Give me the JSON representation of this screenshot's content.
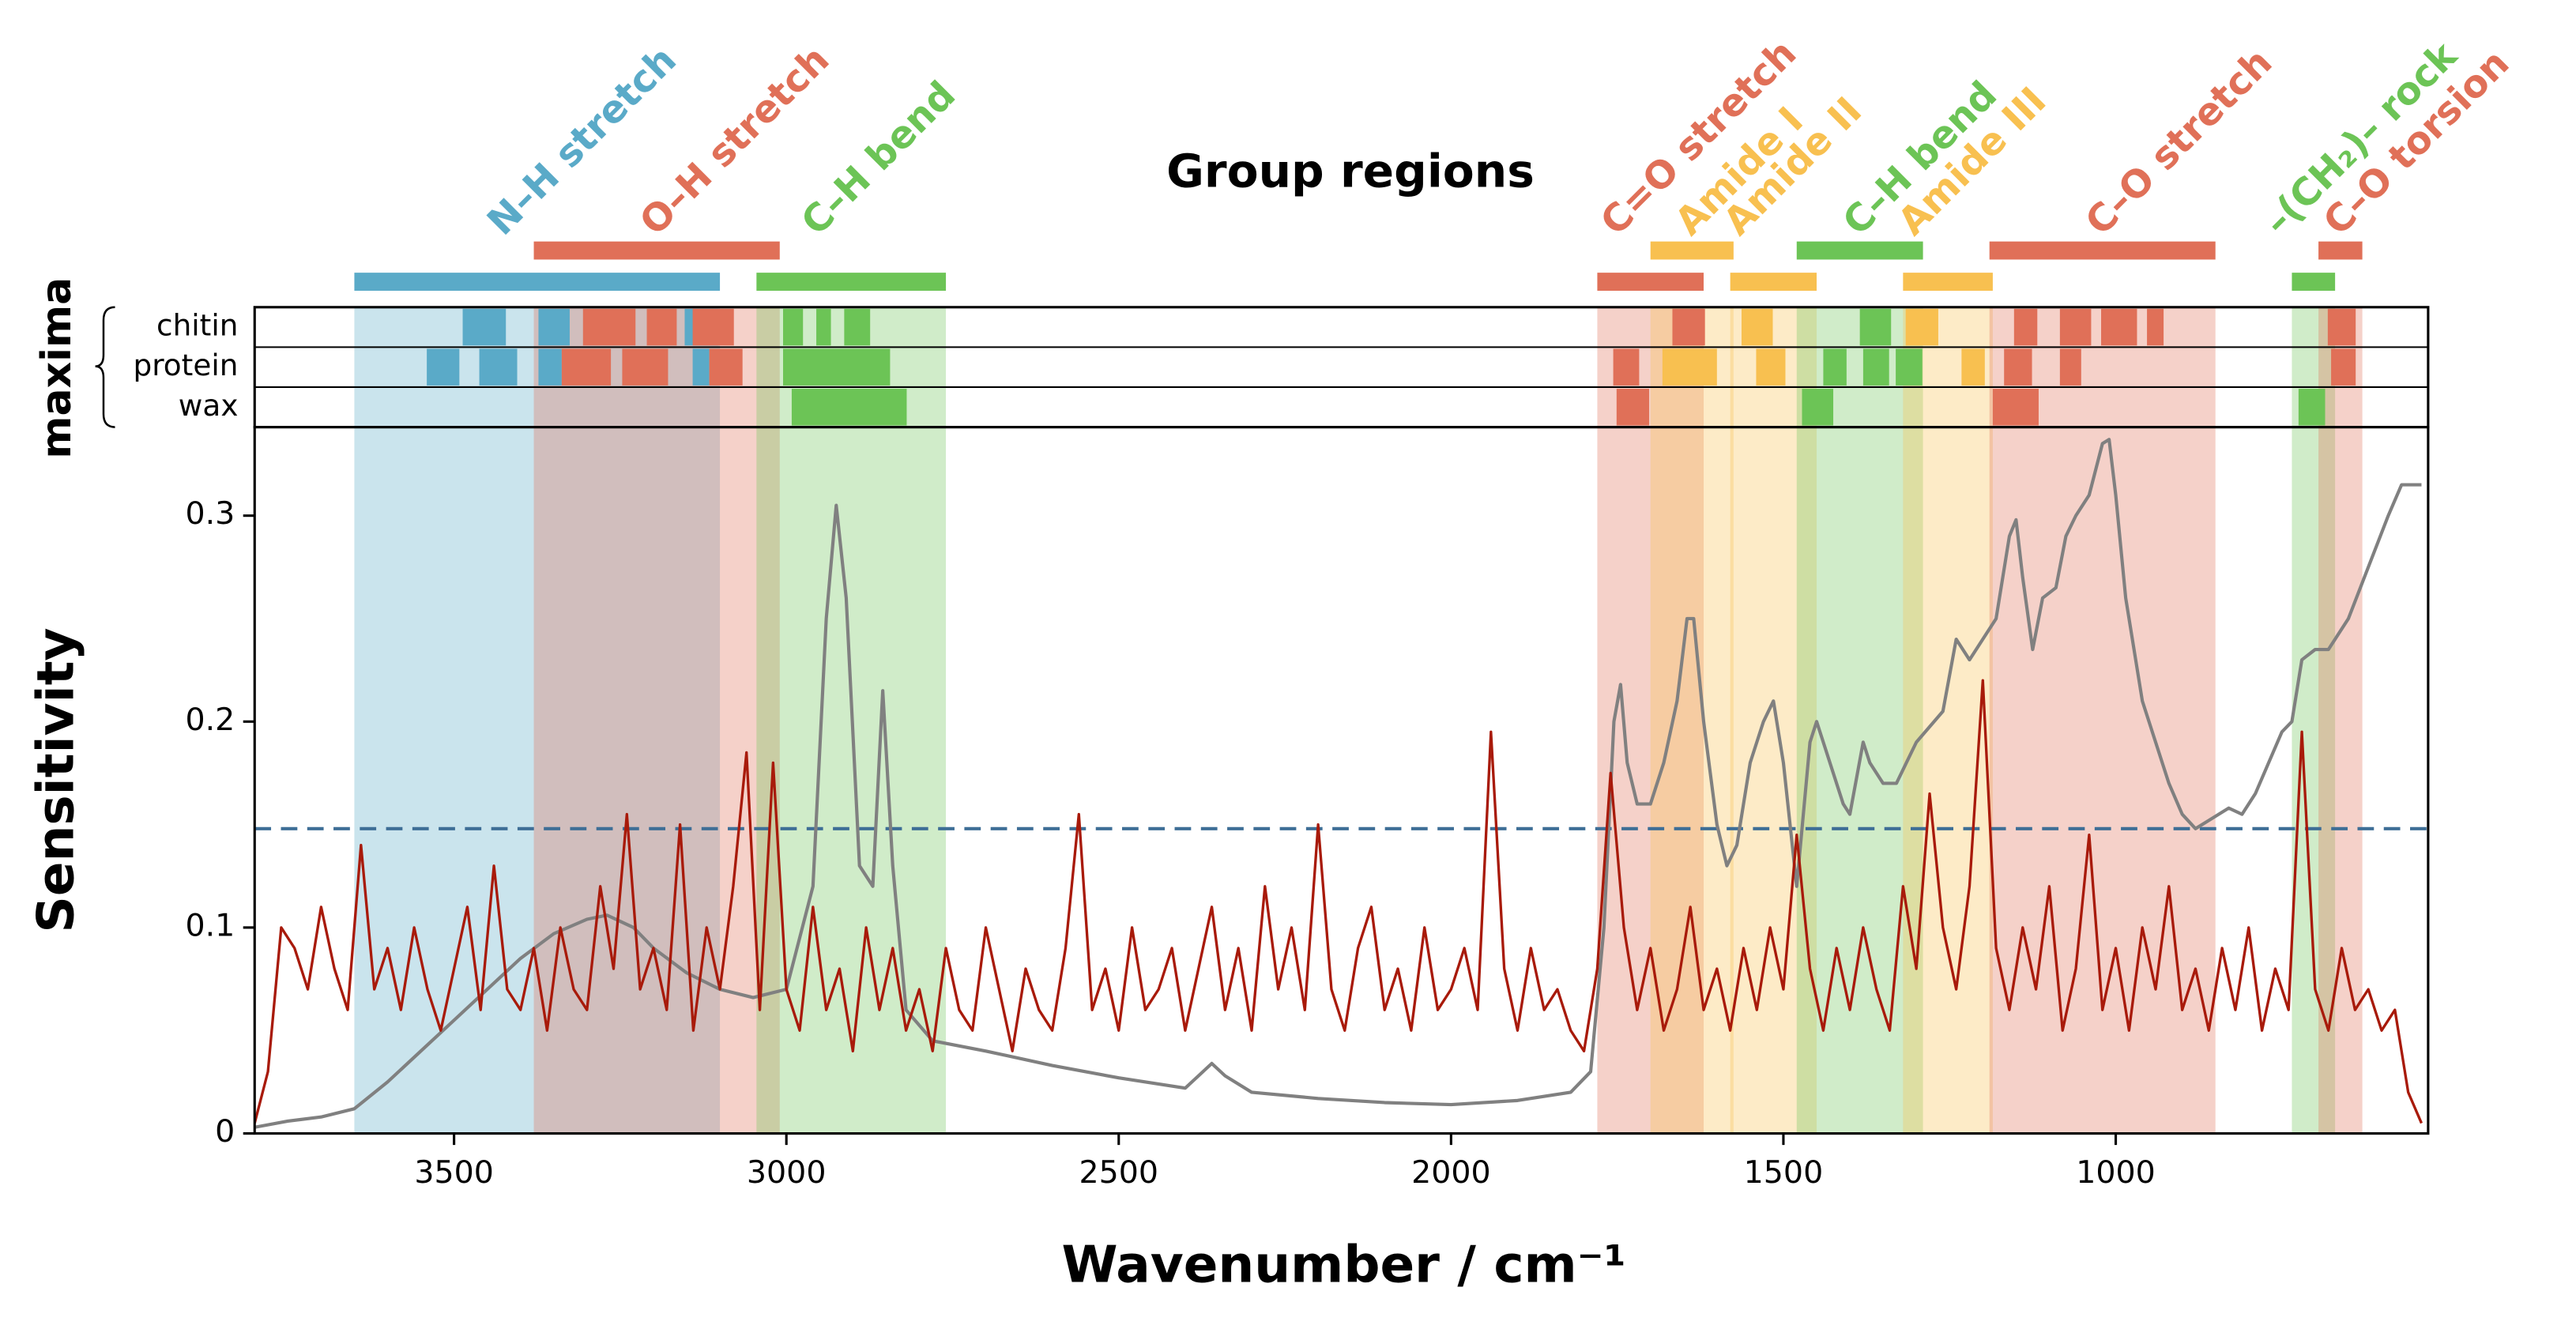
{
  "chart_data": {
    "type": "line",
    "title": "Group regions",
    "xlabel": "Wavenumber / cm⁻¹",
    "ylabel": "Sensitivity",
    "xlim": [
      3800,
      530
    ],
    "xticks": [
      3500,
      3000,
      2500,
      2000,
      1500,
      1000
    ],
    "ylim": [
      0,
      0.343
    ],
    "yticks": [
      0,
      0.1,
      0.2,
      0.3
    ],
    "threshold": {
      "value": 0.148,
      "color": "#3e6e96"
    },
    "series": [
      {
        "color": "#a81a0a",
        "x": [
          3800,
          3780,
          3760,
          3740,
          3720,
          3700,
          3680,
          3660,
          3640,
          3620,
          3600,
          3580,
          3560,
          3540,
          3520,
          3500,
          3480,
          3460,
          3440,
          3420,
          3400,
          3380,
          3360,
          3340,
          3320,
          3300,
          3280,
          3260,
          3240,
          3220,
          3200,
          3180,
          3160,
          3140,
          3120,
          3100,
          3080,
          3060,
          3040,
          3020,
          3000,
          2980,
          2960,
          2940,
          2920,
          2900,
          2880,
          2860,
          2840,
          2820,
          2800,
          2780,
          2760,
          2740,
          2720,
          2700,
          2680,
          2660,
          2640,
          2620,
          2600,
          2580,
          2560,
          2540,
          2520,
          2500,
          2480,
          2460,
          2440,
          2420,
          2400,
          2380,
          2360,
          2340,
          2320,
          2300,
          2280,
          2260,
          2240,
          2220,
          2200,
          2180,
          2160,
          2140,
          2120,
          2100,
          2080,
          2060,
          2040,
          2020,
          2000,
          1980,
          1960,
          1940,
          1920,
          1900,
          1880,
          1860,
          1840,
          1820,
          1800,
          1780,
          1760,
          1740,
          1720,
          1700,
          1680,
          1660,
          1640,
          1620,
          1600,
          1580,
          1560,
          1540,
          1520,
          1500,
          1480,
          1460,
          1440,
          1420,
          1400,
          1380,
          1360,
          1340,
          1320,
          1300,
          1280,
          1260,
          1240,
          1220,
          1200,
          1180,
          1160,
          1140,
          1120,
          1100,
          1080,
          1060,
          1040,
          1020,
          1000,
          980,
          960,
          940,
          920,
          900,
          880,
          860,
          840,
          820,
          800,
          780,
          760,
          740,
          720,
          700,
          680,
          660,
          640,
          620,
          600,
          580,
          560,
          540
        ],
        "values": [
          0.005,
          0.03,
          0.1,
          0.09,
          0.07,
          0.11,
          0.08,
          0.06,
          0.14,
          0.07,
          0.09,
          0.06,
          0.1,
          0.07,
          0.05,
          0.08,
          0.11,
          0.06,
          0.13,
          0.07,
          0.06,
          0.09,
          0.05,
          0.1,
          0.07,
          0.06,
          0.12,
          0.08,
          0.155,
          0.07,
          0.09,
          0.06,
          0.15,
          0.05,
          0.1,
          0.07,
          0.12,
          0.185,
          0.06,
          0.18,
          0.07,
          0.05,
          0.11,
          0.06,
          0.08,
          0.04,
          0.1,
          0.06,
          0.09,
          0.05,
          0.07,
          0.04,
          0.09,
          0.06,
          0.05,
          0.1,
          0.07,
          0.04,
          0.08,
          0.06,
          0.05,
          0.09,
          0.155,
          0.06,
          0.08,
          0.05,
          0.1,
          0.06,
          0.07,
          0.09,
          0.05,
          0.08,
          0.11,
          0.06,
          0.09,
          0.05,
          0.12,
          0.07,
          0.1,
          0.06,
          0.15,
          0.07,
          0.05,
          0.09,
          0.11,
          0.06,
          0.08,
          0.05,
          0.1,
          0.06,
          0.07,
          0.09,
          0.06,
          0.195,
          0.08,
          0.05,
          0.09,
          0.06,
          0.07,
          0.05,
          0.04,
          0.08,
          0.175,
          0.1,
          0.06,
          0.09,
          0.05,
          0.07,
          0.11,
          0.06,
          0.08,
          0.05,
          0.09,
          0.06,
          0.1,
          0.07,
          0.145,
          0.08,
          0.05,
          0.09,
          0.06,
          0.1,
          0.07,
          0.05,
          0.12,
          0.08,
          0.165,
          0.1,
          0.07,
          0.12,
          0.22,
          0.09,
          0.06,
          0.1,
          0.07,
          0.12,
          0.05,
          0.08,
          0.145,
          0.06,
          0.09,
          0.05,
          0.1,
          0.07,
          0.12,
          0.06,
          0.08,
          0.05,
          0.09,
          0.06,
          0.1,
          0.05,
          0.08,
          0.06,
          0.195,
          0.07,
          0.05,
          0.09,
          0.06,
          0.07,
          0.05,
          0.06,
          0.02,
          0.005
        ]
      },
      {
        "color": "#808080",
        "x": [
          3800,
          3750,
          3700,
          3650,
          3600,
          3550,
          3500,
          3450,
          3400,
          3350,
          3300,
          3270,
          3230,
          3200,
          3150,
          3100,
          3050,
          3000,
          2960,
          2940,
          2925,
          2910,
          2890,
          2870,
          2855,
          2840,
          2820,
          2780,
          2700,
          2600,
          2500,
          2400,
          2360,
          2340,
          2300,
          2200,
          2100,
          2000,
          1900,
          1820,
          1790,
          1770,
          1755,
          1745,
          1735,
          1720,
          1700,
          1680,
          1660,
          1645,
          1635,
          1620,
          1600,
          1585,
          1570,
          1550,
          1530,
          1515,
          1500,
          1480,
          1460,
          1450,
          1430,
          1410,
          1400,
          1380,
          1370,
          1350,
          1330,
          1300,
          1260,
          1240,
          1220,
          1200,
          1180,
          1160,
          1150,
          1140,
          1125,
          1110,
          1090,
          1075,
          1060,
          1040,
          1020,
          1010,
          1000,
          985,
          960,
          940,
          920,
          900,
          880,
          860,
          830,
          810,
          790,
          770,
          750,
          735,
          720,
          700,
          680,
          650,
          620,
          590,
          570,
          540
        ],
        "values": [
          0.003,
          0.006,
          0.008,
          0.012,
          0.025,
          0.04,
          0.055,
          0.07,
          0.085,
          0.097,
          0.104,
          0.106,
          0.1,
          0.09,
          0.078,
          0.07,
          0.066,
          0.07,
          0.12,
          0.25,
          0.305,
          0.26,
          0.13,
          0.12,
          0.215,
          0.13,
          0.06,
          0.045,
          0.04,
          0.033,
          0.027,
          0.022,
          0.034,
          0.028,
          0.02,
          0.017,
          0.015,
          0.014,
          0.016,
          0.02,
          0.03,
          0.1,
          0.2,
          0.218,
          0.18,
          0.16,
          0.16,
          0.18,
          0.21,
          0.25,
          0.25,
          0.2,
          0.15,
          0.13,
          0.14,
          0.18,
          0.2,
          0.21,
          0.18,
          0.12,
          0.19,
          0.2,
          0.18,
          0.16,
          0.155,
          0.19,
          0.18,
          0.17,
          0.17,
          0.19,
          0.205,
          0.24,
          0.23,
          0.24,
          0.25,
          0.29,
          0.298,
          0.27,
          0.235,
          0.26,
          0.265,
          0.29,
          0.3,
          0.31,
          0.335,
          0.337,
          0.31,
          0.26,
          0.21,
          0.19,
          0.17,
          0.155,
          0.148,
          0.152,
          0.158,
          0.155,
          0.165,
          0.18,
          0.195,
          0.2,
          0.23,
          0.235,
          0.235,
          0.25,
          0.275,
          0.3,
          0.315,
          0.315
        ]
      }
    ],
    "regions": [
      {
        "label": "N–H stretch",
        "color": "#5aaac8",
        "from": 3650,
        "to": 3100
      },
      {
        "label": "O–H stretch",
        "color": "#e07058",
        "from": 3380,
        "to": 3010
      },
      {
        "label": "C–H bend",
        "color": "#6cc456",
        "from": 3045,
        "to": 2760
      },
      {
        "label": "C=O stretch",
        "color": "#e07058",
        "from": 1780,
        "to": 1620
      },
      {
        "label": "Amide I",
        "color": "#f8c050",
        "from": 1700,
        "to": 1575
      },
      {
        "label": "Amide II",
        "color": "#f8c050",
        "from": 1580,
        "to": 1450
      },
      {
        "label": "C–H bend",
        "color": "#6cc456",
        "from": 1480,
        "to": 1290
      },
      {
        "label": "Amide III",
        "color": "#f8c050",
        "from": 1320,
        "to": 1185
      },
      {
        "label": "C–O stretch",
        "color": "#e07058",
        "from": 1190,
        "to": 850
      },
      {
        "label": "–(CH₂)– rock",
        "color": "#6cc456",
        "from": 735,
        "to": 670
      },
      {
        "label": "C–O torsion",
        "color": "#e07058",
        "from": 695,
        "to": 629
      }
    ],
    "maxima": {
      "label": "maxima",
      "rows": [
        {
          "name": "chitin",
          "blocks": [
            {
              "from": 3487,
              "to": 3422,
              "color": "#5aaac8"
            },
            {
              "from": 3373,
              "to": 3326,
              "color": "#5aaac8"
            },
            {
              "from": 3306,
              "to": 3227,
              "color": "#e07058"
            },
            {
              "from": 3210,
              "to": 3165,
              "color": "#e07058"
            },
            {
              "from": 3153,
              "to": 3103,
              "color": "#5aaac8"
            },
            {
              "from": 3141,
              "to": 3079,
              "color": "#e07058"
            },
            {
              "from": 3005,
              "to": 2975,
              "color": "#6cc456"
            },
            {
              "from": 2955,
              "to": 2933,
              "color": "#6cc456"
            },
            {
              "from": 2913,
              "to": 2874,
              "color": "#6cc456"
            },
            {
              "from": 1667,
              "to": 1618,
              "color": "#e07058"
            },
            {
              "from": 1563,
              "to": 1516,
              "color": "#f8c050"
            },
            {
              "from": 1385,
              "to": 1338,
              "color": "#6cc456"
            },
            {
              "from": 1316,
              "to": 1267,
              "color": "#f8c050"
            },
            {
              "from": 1153,
              "to": 1118,
              "color": "#e07058"
            },
            {
              "from": 1084,
              "to": 1037,
              "color": "#e07058"
            },
            {
              "from": 1022,
              "to": 968,
              "color": "#e07058"
            },
            {
              "from": 953,
              "to": 928,
              "color": "#e07058"
            },
            {
              "from": 681,
              "to": 639,
              "color": "#e07058"
            }
          ]
        },
        {
          "name": "protein",
          "blocks": [
            {
              "from": 3541,
              "to": 3492,
              "color": "#5aaac8"
            },
            {
              "from": 3462,
              "to": 3405,
              "color": "#5aaac8"
            },
            {
              "from": 3373,
              "to": 3338,
              "color": "#5aaac8"
            },
            {
              "from": 3338,
              "to": 3264,
              "color": "#e07058"
            },
            {
              "from": 3247,
              "to": 3178,
              "color": "#e07058"
            },
            {
              "from": 3141,
              "to": 3116,
              "color": "#5aaac8"
            },
            {
              "from": 3116,
              "to": 3066,
              "color": "#e07058"
            },
            {
              "from": 3005,
              "to": 2844,
              "color": "#6cc456"
            },
            {
              "from": 1756,
              "to": 1717,
              "color": "#e07058"
            },
            {
              "from": 1682,
              "to": 1600,
              "color": "#f8c050"
            },
            {
              "from": 1541,
              "to": 1497,
              "color": "#f8c050"
            },
            {
              "from": 1440,
              "to": 1405,
              "color": "#6cc456"
            },
            {
              "from": 1380,
              "to": 1341,
              "color": "#6cc456"
            },
            {
              "from": 1331,
              "to": 1291,
              "color": "#6cc456"
            },
            {
              "from": 1232,
              "to": 1197,
              "color": "#f8c050"
            },
            {
              "from": 1168,
              "to": 1126,
              "color": "#e07058"
            },
            {
              "from": 1084,
              "to": 1052,
              "color": "#e07058"
            },
            {
              "from": 676,
              "to": 639,
              "color": "#e07058"
            }
          ]
        },
        {
          "name": "wax",
          "blocks": [
            {
              "from": 2992,
              "to": 2819,
              "color": "#6cc456"
            },
            {
              "from": 1751,
              "to": 1702,
              "color": "#e07058"
            },
            {
              "from": 1472,
              "to": 1425,
              "color": "#6cc456"
            },
            {
              "from": 1185,
              "to": 1116,
              "color": "#e07058"
            },
            {
              "from": 725,
              "to": 685,
              "color": "#6cc456"
            }
          ]
        }
      ]
    }
  }
}
